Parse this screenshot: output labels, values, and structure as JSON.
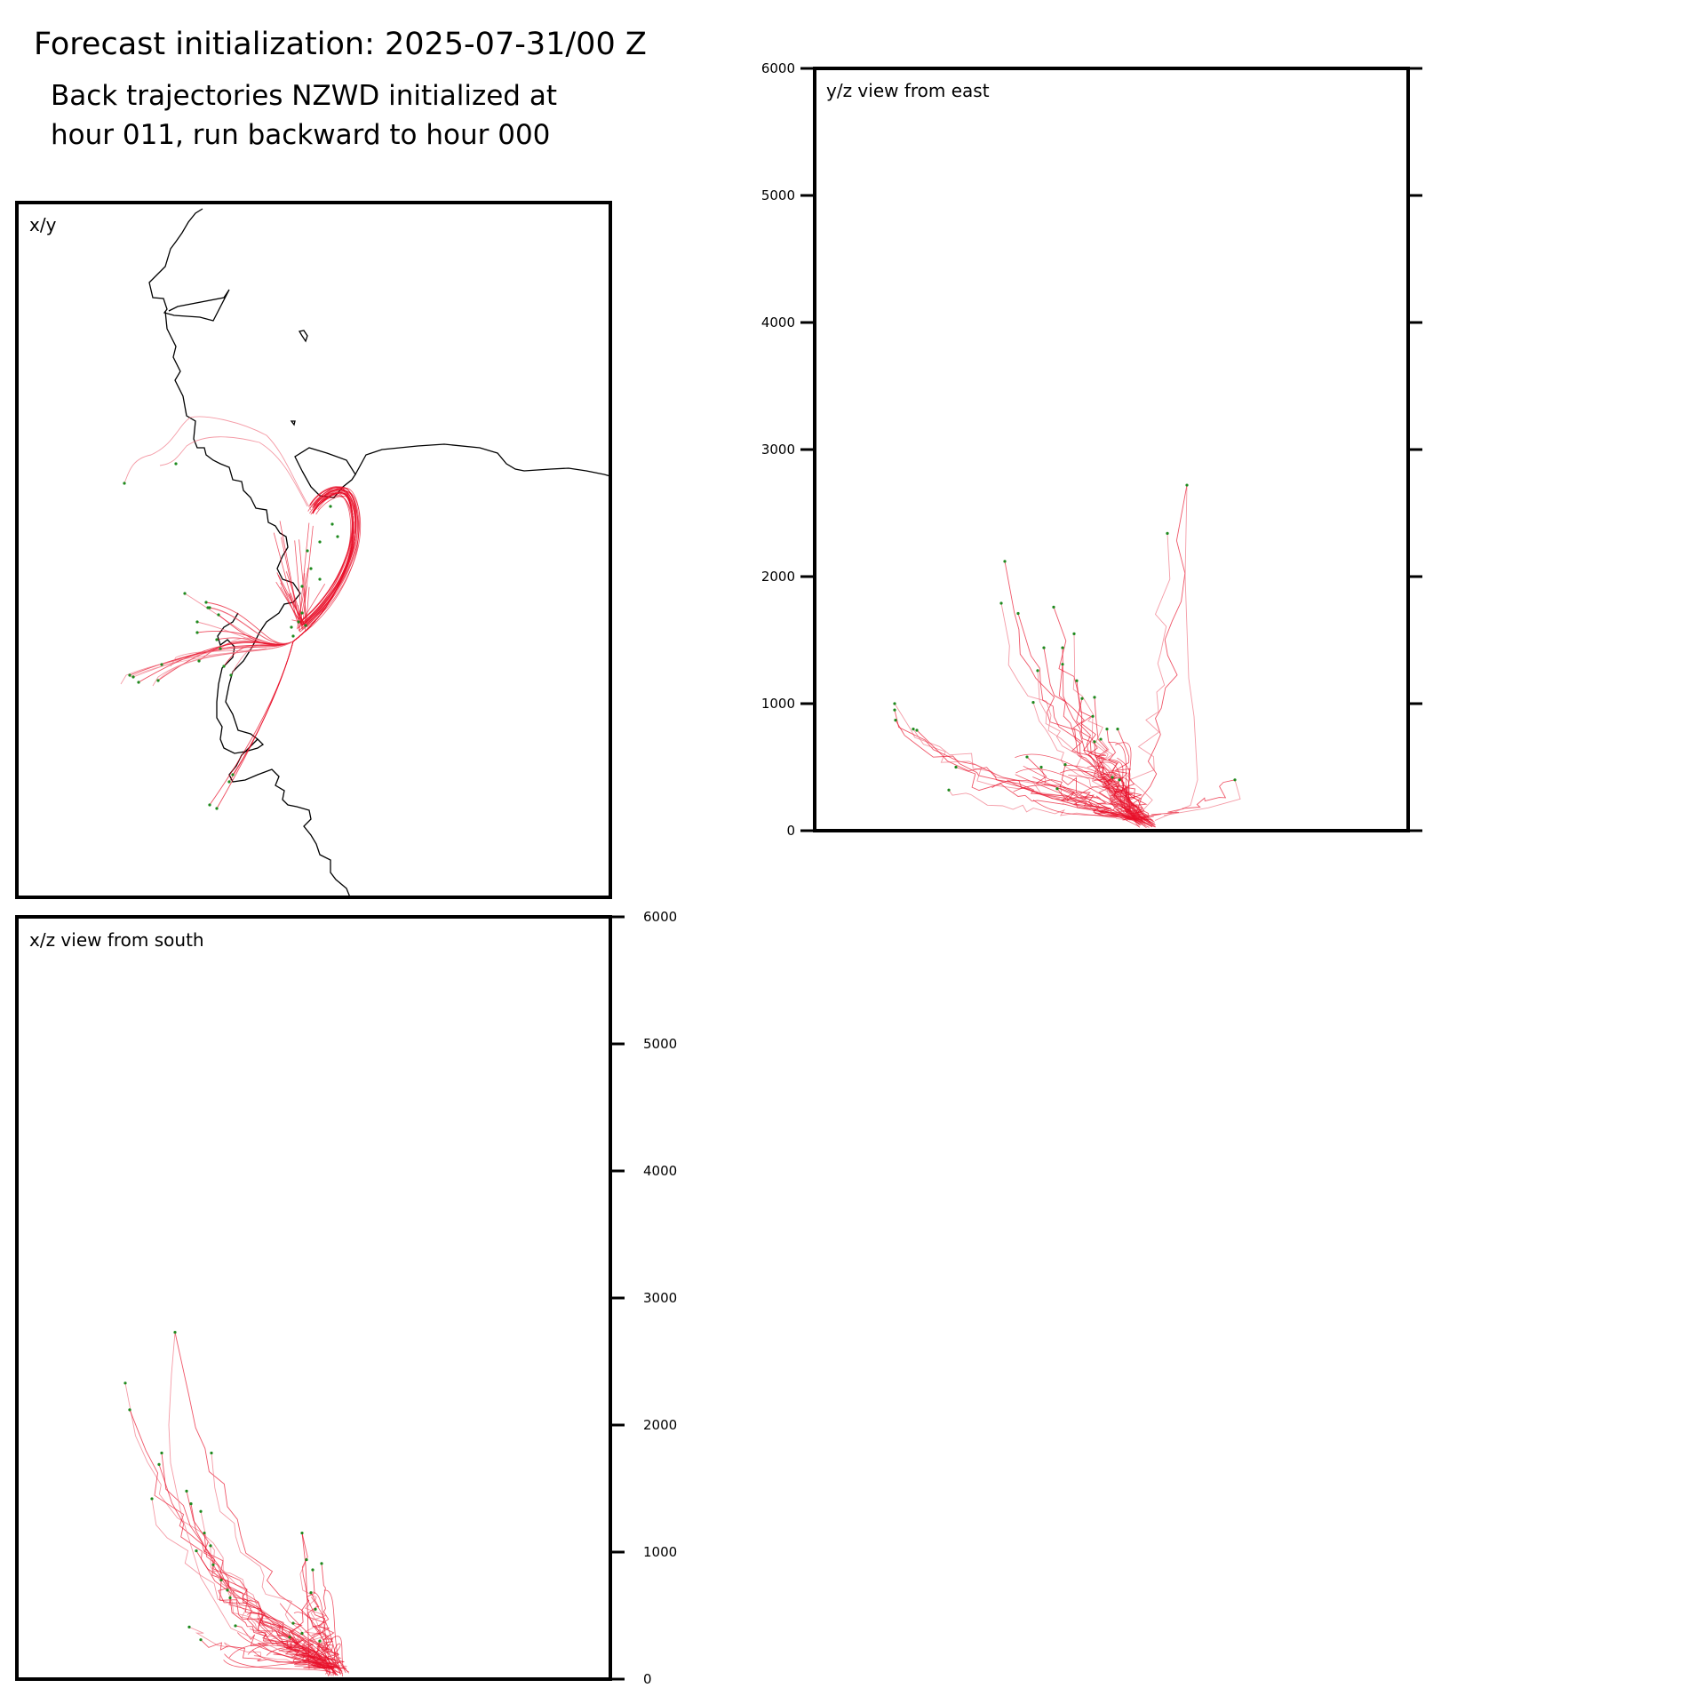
{
  "title": "Forecast initialization: 2025-07-31/00 Z",
  "subtitle_line1": "Back trajectories NZWD initialized at",
  "subtitle_line2": "hour 011, run backward to hour 000",
  "colors": {
    "trajectory": "#e8102a",
    "trajectory_light": "#f07080",
    "marker": "#1e8a1e",
    "coast": "#000000",
    "frame": "#000000"
  },
  "chart_data": [
    {
      "type": "line",
      "panel": "x/y",
      "label": "x/y",
      "xlabel": "",
      "ylabel": "",
      "xticks": [],
      "yticks": [],
      "grid": false,
      "series": []
    },
    {
      "type": "line",
      "panel": "y/z",
      "label": "y/z view from east",
      "xlabel": "",
      "ylabel": "",
      "ylim": [
        0,
        6000
      ],
      "yticks": [
        0,
        1000,
        2000,
        3000,
        4000,
        5000,
        6000
      ],
      "ytick_labels": [
        "0",
        "1000",
        "2000",
        "3000",
        "4000",
        "5000",
        "6000"
      ],
      "ytick_side": "left",
      "grid": false,
      "series": []
    },
    {
      "type": "line",
      "panel": "x/z",
      "label": "x/z view from south",
      "xlabel": "",
      "ylabel": "",
      "ylim": [
        0,
        6000
      ],
      "yticks": [
        0,
        1000,
        2000,
        3000,
        4000,
        5000,
        6000
      ],
      "ytick_labels": [
        "0",
        "1000",
        "2000",
        "3000",
        "4000",
        "5000",
        "6000"
      ],
      "ytick_side": "right",
      "grid": false,
      "series": []
    }
  ]
}
